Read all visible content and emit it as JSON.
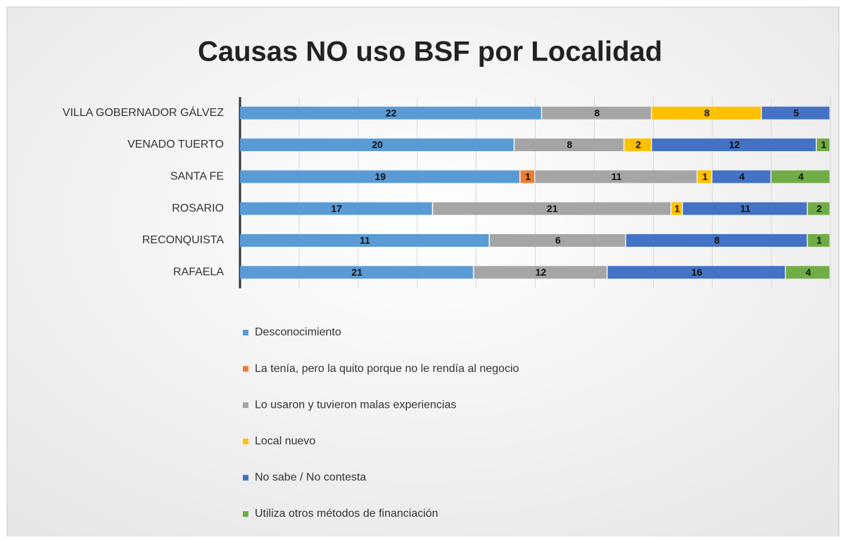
{
  "chart_data": {
    "type": "bar",
    "orientation": "horizontal",
    "stacked": "percent",
    "title": "Causas NO uso BSF por Localidad",
    "categories": [
      "VILLA GOBERNADOR GÁLVEZ",
      "VENADO TUERTO",
      "SANTA FE",
      "ROSARIO",
      "RECONQUISTA",
      "RAFAELA"
    ],
    "series": [
      {
        "name": "Desconocimiento",
        "color": "#5b9bd5",
        "values": [
          22,
          20,
          19,
          17,
          11,
          21
        ]
      },
      {
        "name": "La tenía, pero la quito porque no le rendía al negocio",
        "color": "#ed7d31",
        "values": [
          null,
          null,
          1,
          null,
          null,
          null
        ]
      },
      {
        "name": "Lo usaron y tuvieron malas experiencias",
        "color": "#a5a5a5",
        "values": [
          8,
          8,
          11,
          21,
          6,
          12
        ]
      },
      {
        "name": "Local nuevo",
        "color": "#ffc000",
        "values": [
          8,
          2,
          1,
          1,
          null,
          null
        ]
      },
      {
        "name": "No sabe / No contesta",
        "color": "#4472c4",
        "values": [
          5,
          12,
          4,
          11,
          8,
          16
        ]
      },
      {
        "name": "Utiliza otros métodos de financiación",
        "color": "#70ad47",
        "values": [
          null,
          1,
          4,
          2,
          1,
          4
        ]
      }
    ],
    "xlim": [
      0,
      100
    ],
    "xticks": [
      0,
      10,
      20,
      30,
      40,
      50,
      60,
      70,
      80,
      90,
      100
    ],
    "tick_labels": false,
    "grid": true,
    "data_labels": true,
    "legend": "bottom"
  }
}
